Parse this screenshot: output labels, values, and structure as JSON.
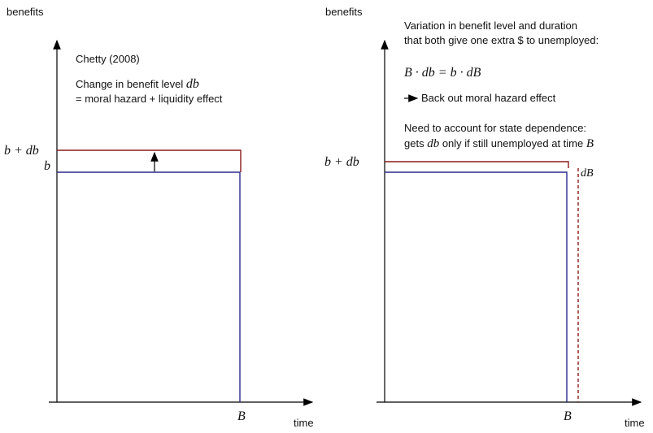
{
  "left": {
    "y_axis_label": "benefits",
    "x_axis_label": "time",
    "x_marker": "B",
    "level_high": "b + db",
    "level_low": "b",
    "title": "Chetty (2008)",
    "note_line1": [
      "Change in benefit level",
      "db"
    ],
    "note_line2": "= moral hazard + liquidity effect"
  },
  "right": {
    "y_axis_label": "benefits",
    "x_axis_label": "time",
    "x_marker": "B",
    "level_high": "b + db",
    "duration_change": "dB",
    "text_line1": "Variation in benefit level and duration",
    "text_line2": "that both give one extra $ to unemployed:",
    "equation": "B · db = b · dB",
    "arrow_note": "Back out moral hazard effect",
    "dependence_line1": "Need to account for state dependence:",
    "dependence_line2": [
      "gets",
      "db",
      "only if still unemployed at time",
      "B"
    ]
  }
}
